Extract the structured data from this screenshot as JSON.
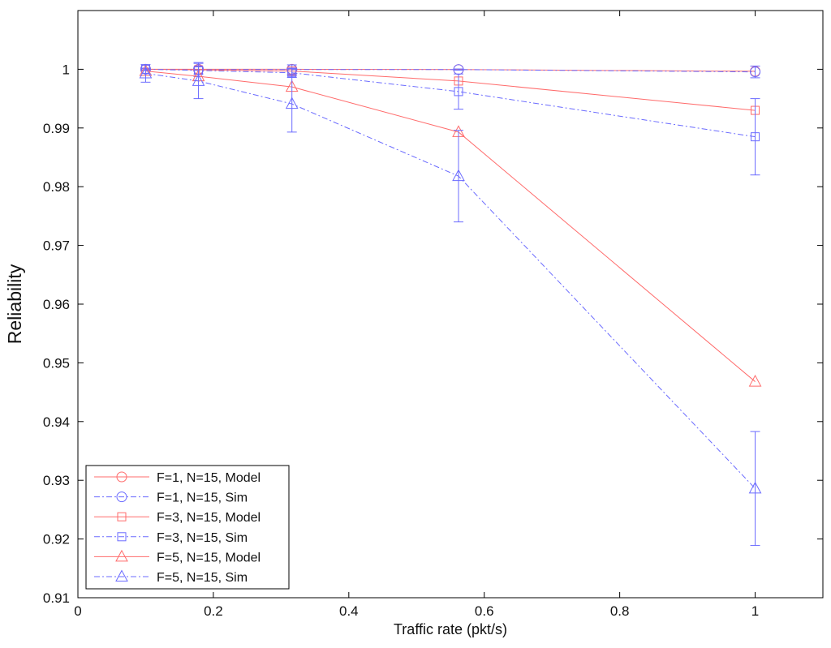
{
  "chart_data": {
    "type": "line",
    "title": "",
    "xlabel": "Traffic rate (pkt/s)",
    "ylabel": "Reliability",
    "xlim": [
      0,
      1.1
    ],
    "ylim": [
      0.91,
      1.01
    ],
    "xticks": [
      0,
      0.2,
      0.4,
      0.6,
      0.8,
      1
    ],
    "xtick_labels": [
      "0",
      "0.2",
      "0.4",
      "0.6",
      "0.8",
      "1"
    ],
    "yticks": [
      0.91,
      0.92,
      0.93,
      0.94,
      0.95,
      0.96,
      0.97,
      0.98,
      0.99,
      1
    ],
    "ytick_labels": [
      "0.91",
      "0.92",
      "0.93",
      "0.94",
      "0.95",
      "0.96",
      "0.97",
      "0.98",
      "0.99",
      "1"
    ],
    "grid": false,
    "legend_position": "bottom-left",
    "x": [
      0.1,
      0.178,
      0.316,
      0.562,
      1.0
    ],
    "series": [
      {
        "name": "F=1, N=15, Model",
        "marker": "circle",
        "color": "#ff6b6b",
        "dash": "solid",
        "values": [
          1.0,
          1.0,
          1.0,
          0.99995,
          0.99965
        ]
      },
      {
        "name": "F=1, N=15, Sim",
        "marker": "circle",
        "color": "#6b6bff",
        "dash": "dashdot",
        "values": [
          1.0,
          0.99995,
          0.99995,
          0.99995,
          0.99955
        ],
        "error": [
          0.0001,
          0.0012,
          0.0008,
          0.0001,
          0.001
        ]
      },
      {
        "name": "F=3, N=15, Model",
        "marker": "square",
        "color": "#ff6b6b",
        "dash": "solid",
        "values": [
          1.0,
          0.9999,
          0.9997,
          0.998,
          0.993
        ]
      },
      {
        "name": "F=3, N=15, Sim",
        "marker": "square",
        "color": "#6b6bff",
        "dash": "dashdot",
        "values": [
          1.0,
          0.9998,
          0.9994,
          0.9962,
          0.9885
        ],
        "error": [
          0.0002,
          0.0006,
          0.0008,
          0.003,
          0.0065
        ]
      },
      {
        "name": "F=5, N=15, Model",
        "marker": "triangle",
        "color": "#ff6b6b",
        "dash": "solid",
        "values": [
          0.9997,
          0.9988,
          0.997,
          0.9893,
          0.9468
        ]
      },
      {
        "name": "F=5, N=15, Sim",
        "marker": "triangle",
        "color": "#6b6bff",
        "dash": "dashdot",
        "values": [
          0.9993,
          0.998,
          0.9941,
          0.9818,
          0.9286
        ],
        "error": [
          0.0015,
          0.003,
          0.0048,
          0.0078,
          0.0097
        ]
      }
    ]
  }
}
